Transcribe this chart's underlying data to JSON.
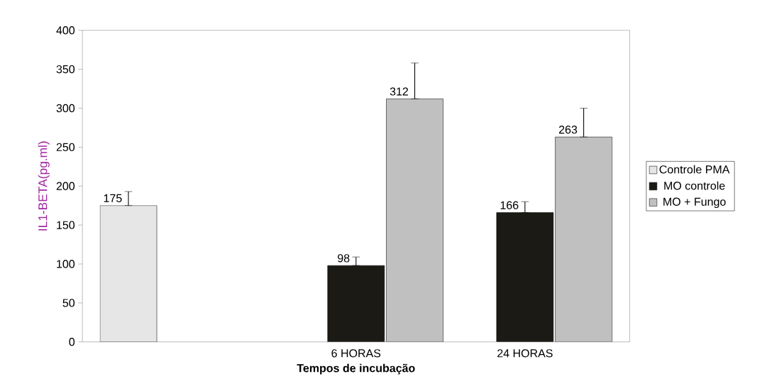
{
  "chart_data": {
    "type": "bar",
    "xlabel": "Tempos de incubação",
    "ylabel": "IL1-BETA(pg.ml)",
    "categories": [
      null,
      "6 HORAS",
      "24 HORAS"
    ],
    "series": [
      {
        "name": "Controle PMA",
        "color": "#e6e6e6",
        "values": [
          175,
          null,
          null
        ],
        "errors": [
          [
            175,
            193
          ],
          null,
          null
        ]
      },
      {
        "name": "MO controle",
        "color": "#1c1a14",
        "values": [
          null,
          98,
          166
        ],
        "errors": [
          null,
          [
            98,
            109
          ],
          [
            166,
            180
          ]
        ]
      },
      {
        "name": "MO + Fungo",
        "color": "#c0c0c0",
        "values": [
          null,
          312,
          263
        ],
        "errors": [
          null,
          [
            312,
            358
          ],
          [
            263,
            300
          ]
        ]
      }
    ],
    "ylim": [
      0,
      400
    ],
    "yticks": [
      0,
      50,
      100,
      150,
      200,
      250,
      300,
      350,
      400
    ],
    "data_labels": true,
    "legend": "right",
    "grid": false
  }
}
